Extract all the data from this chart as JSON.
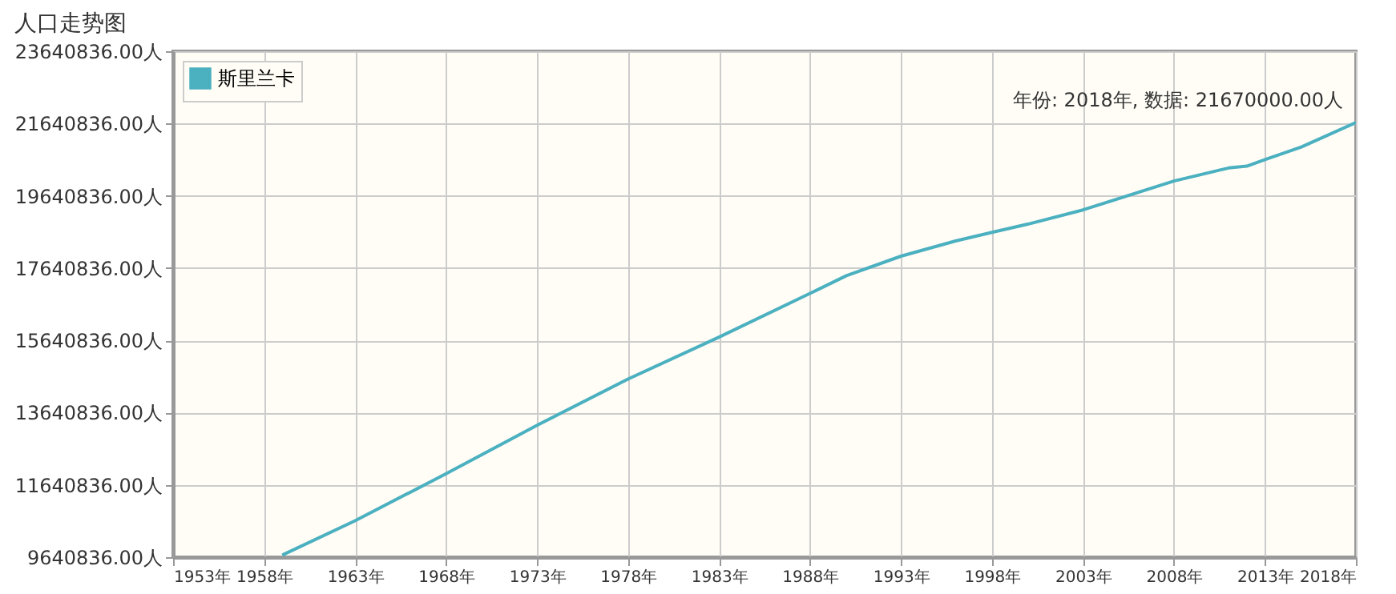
{
  "chart_data": {
    "type": "line",
    "title": "人口走势图",
    "x": [
      1959,
      1963,
      1968,
      1973,
      1978,
      1983,
      1988,
      1990,
      1993,
      1996,
      1998,
      2000,
      2003,
      2008,
      2011,
      2012,
      2013,
      2015,
      2018
    ],
    "series": [
      {
        "name": "斯里兰卡",
        "color": "#4bb0c0",
        "values": [
          9700000,
          10650000,
          11950000,
          13290000,
          14570000,
          15730000,
          16940000,
          17430000,
          17970000,
          18390000,
          18630000,
          18860000,
          19250000,
          20050000,
          20410000,
          20460000,
          20640000,
          20990000,
          21670000
        ]
      }
    ],
    "xlim": [
      1953,
      2018
    ],
    "xticks": [
      {
        "value": 1953,
        "label": "1953年"
      },
      {
        "value": 1958,
        "label": "1958年"
      },
      {
        "value": 1963,
        "label": "1963年"
      },
      {
        "value": 1968,
        "label": "1968年"
      },
      {
        "value": 1973,
        "label": "1973年"
      },
      {
        "value": 1978,
        "label": "1978年"
      },
      {
        "value": 1983,
        "label": "1983年"
      },
      {
        "value": 1988,
        "label": "1988年"
      },
      {
        "value": 1993,
        "label": "1993年"
      },
      {
        "value": 1998,
        "label": "1998年"
      },
      {
        "value": 2003,
        "label": "2003年"
      },
      {
        "value": 2008,
        "label": "2008年"
      },
      {
        "value": 2013,
        "label": "2013年"
      },
      {
        "value": 2018,
        "label": "2018年"
      }
    ],
    "ylim": [
      9640836,
      23640836
    ],
    "yticks": [
      {
        "value": 9640836,
        "label": "9640836.00人"
      },
      {
        "value": 11640836,
        "label": "11640836.00人"
      },
      {
        "value": 13640836,
        "label": "13640836.00人"
      },
      {
        "value": 15640836,
        "label": "15640836.00人"
      },
      {
        "value": 17640836,
        "label": "17640836.00人"
      },
      {
        "value": 19640836,
        "label": "19640836.00人"
      },
      {
        "value": 21640836,
        "label": "21640836.00人"
      },
      {
        "value": 23640836,
        "label": "23640836.00人"
      }
    ],
    "annotations": [
      {
        "text": "年份: 2018年, 数据: 21670000.00人",
        "x": 2018,
        "y": 21670000
      }
    ],
    "grid": true,
    "legend": "top left",
    "marker": "none",
    "line_style": "solid"
  }
}
